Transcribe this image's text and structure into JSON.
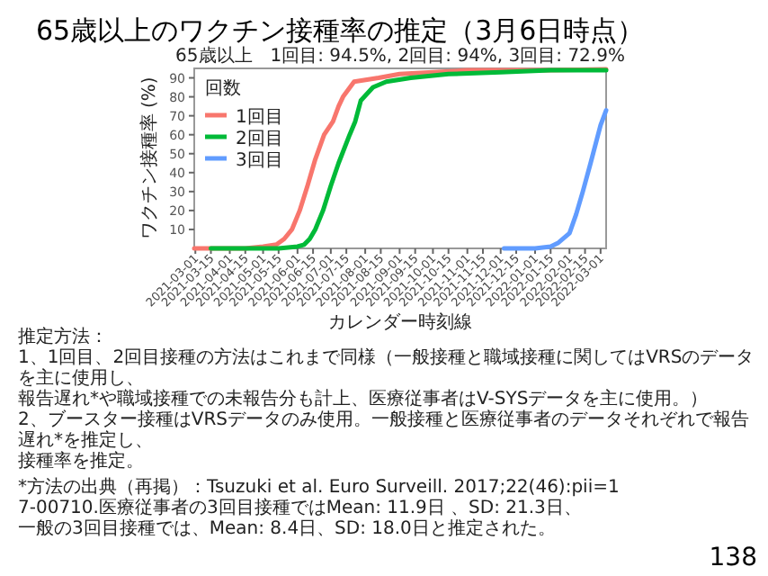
{
  "chart_data": {
    "type": "line",
    "title": "65歳以上のワクチン接種率の推定（3月6日時点）",
    "subtitle": "65歳以上　1回目: 94.5%, 2回目: 94%, 3回目: 72.9%",
    "xlabel": "カレンダー時刻線",
    "ylabel": "ワクチン接種率 (%)",
    "legend_title": "回数",
    "legend": "top left",
    "xlim": [
      "2021-02-28",
      "2022-03-06"
    ],
    "xticks": [
      {
        "value": "2021-03-01",
        "label": "2021-03-01"
      },
      {
        "value": "2021-03-15",
        "label": "2021-03-15"
      },
      {
        "value": "2021-04-01",
        "label": "2021-04-01"
      },
      {
        "value": "2021-04-15",
        "label": "2021-04-15"
      },
      {
        "value": "2021-05-01",
        "label": "2021-05-01"
      },
      {
        "value": "2021-05-15",
        "label": "2021-05-15"
      },
      {
        "value": "2021-06-01",
        "label": "2021-06-01"
      },
      {
        "value": "2021-06-15",
        "label": "2021-06-15"
      },
      {
        "value": "2021-07-01",
        "label": "2021-07-01"
      },
      {
        "value": "2021-07-15",
        "label": "2021-07-15"
      },
      {
        "value": "2021-08-01",
        "label": "2021-08-01"
      },
      {
        "value": "2021-08-15",
        "label": "2021-08-15"
      },
      {
        "value": "2021-09-01",
        "label": "2021-09-01"
      },
      {
        "value": "2021-09-15",
        "label": "2021-09-15"
      },
      {
        "value": "2021-10-01",
        "label": "2021-10-01"
      },
      {
        "value": "2021-10-15",
        "label": "2021-10-15"
      },
      {
        "value": "2021-11-01",
        "label": "2021-11-01"
      },
      {
        "value": "2021-11-15",
        "label": "2021-11-15"
      },
      {
        "value": "2021-12-01",
        "label": "2021-12-01"
      },
      {
        "value": "2021-12-15",
        "label": "2021-12-15"
      },
      {
        "value": "2022-01-01",
        "label": "2022-01-01"
      },
      {
        "value": "2022-01-15",
        "label": "2022-01-15"
      },
      {
        "value": "2022-02-01",
        "label": "2022-02-01"
      },
      {
        "value": "2022-02-15",
        "label": "2022-02-15"
      },
      {
        "value": "2022-03-01",
        "label": "2022-03-01"
      }
    ],
    "ylim": [
      0,
      95
    ],
    "yticks": [
      10,
      20,
      30,
      40,
      50,
      60,
      70,
      80,
      90
    ],
    "series": [
      {
        "name": "1回目",
        "color": "#f8766d",
        "x": [
          "2021-02-28",
          "2021-04-01",
          "2021-04-15",
          "2021-05-01",
          "2021-05-13",
          "2021-05-20",
          "2021-05-27",
          "2021-06-03",
          "2021-06-10",
          "2021-06-17",
          "2021-06-25",
          "2021-07-03",
          "2021-07-08",
          "2021-07-12",
          "2021-07-22",
          "2021-08-13",
          "2021-09-01",
          "2021-10-01",
          "2021-11-01",
          "2021-12-01",
          "2022-01-15",
          "2022-03-06"
        ],
        "values": [
          0,
          0,
          0,
          1,
          2,
          5,
          10,
          20,
          33,
          47,
          60,
          67,
          75,
          80,
          88,
          90,
          92,
          93,
          94,
          94,
          94,
          94.5
        ]
      },
      {
        "name": "2回目",
        "color": "#00ba38",
        "x": [
          "2021-03-15",
          "2021-04-15",
          "2021-05-15",
          "2021-06-01",
          "2021-06-07",
          "2021-06-12",
          "2021-06-17",
          "2021-06-24",
          "2021-07-01",
          "2021-07-08",
          "2021-07-18",
          "2021-07-23",
          "2021-07-28",
          "2021-08-08",
          "2021-08-20",
          "2021-09-11",
          "2021-10-15",
          "2021-12-01",
          "2022-01-15",
          "2022-03-06"
        ],
        "values": [
          0,
          0,
          0,
          1,
          2,
          5,
          10,
          20,
          33,
          45,
          60,
          67,
          78,
          85,
          88,
          90,
          92,
          93,
          94,
          94
        ]
      },
      {
        "name": "3回目",
        "color": "#619cff",
        "x": [
          "2021-12-04",
          "2022-01-01",
          "2022-01-15",
          "2022-01-22",
          "2022-02-01",
          "2022-02-07",
          "2022-02-13",
          "2022-02-20",
          "2022-03-01",
          "2022-03-06"
        ],
        "values": [
          0,
          0,
          1,
          3,
          8,
          18,
          30,
          45,
          65,
          72.9
        ]
      }
    ],
    "annotations": [
      "推定方法：",
      "1、1回目、2回目接種の方法はこれまで同様（一般接種と職域接種に関してはVRSのデータを主に使用し、",
      "報告遅れ*や職域接種での未報告分も計上、医療従事者はV-SYSデータを主に使用。）",
      "2、ブースター接種はVRSデータのみ使用。一般接種と医療従事者のデータそれぞれで報告遅れ*を推定し、",
      "接種率を推定。",
      "*方法の出典（再掲）：Tsuzuki et al. Euro Surveill. 2017;22(46):pii=17-00710.医療従事者の3回目接種ではMean: 11.9日 、SD: 21.3日、",
      "一般の3回目接種では、Mean: 8.4日、SD: 18.0日と推定された。",
      "138"
    ]
  }
}
